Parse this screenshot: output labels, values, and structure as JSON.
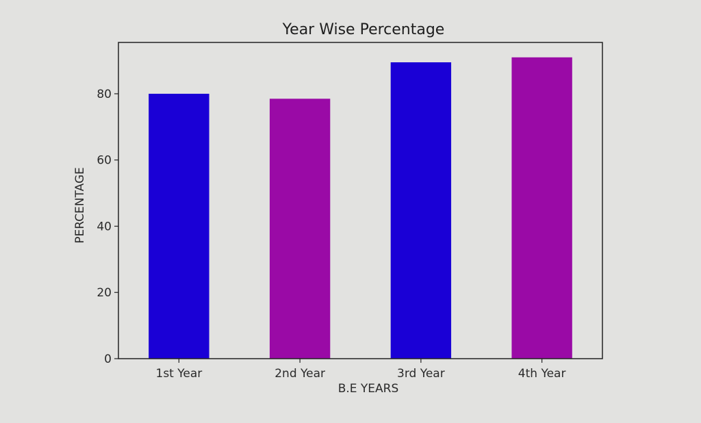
{
  "chart_data": {
    "type": "bar",
    "title": "Year Wise Percentage",
    "xlabel": "B.E YEARS",
    "ylabel": "PERCENTAGE",
    "categories": [
      "1st Year",
      "2nd Year",
      "3rd Year",
      "4th Year"
    ],
    "values": [
      80,
      78.5,
      89.5,
      91
    ],
    "colors": [
      "#1a00d6",
      "#9a0aa6",
      "#1a00d6",
      "#9a0aa6"
    ],
    "ylim": [
      0,
      95.5
    ],
    "yticks": [
      0,
      20,
      40,
      60,
      80
    ],
    "grid": false
  }
}
